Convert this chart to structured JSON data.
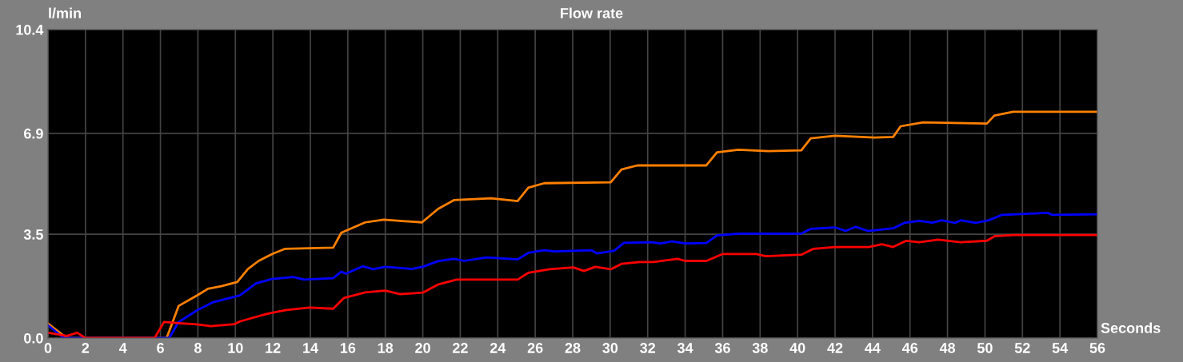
{
  "chart_data": {
    "type": "line",
    "title": "Flow rate",
    "ylabel": "l/min",
    "xlabel": "Seconds",
    "xlim": [
      0,
      56
    ],
    "xticks": [
      0,
      2,
      4,
      6,
      8,
      10,
      12,
      14,
      16,
      18,
      20,
      22,
      24,
      26,
      28,
      30,
      32,
      34,
      36,
      38,
      40,
      42,
      44,
      46,
      48,
      50,
      52,
      54,
      56
    ],
    "ylim": [
      0,
      10.4
    ],
    "yticks": [
      {
        "value": 0,
        "label": "0.0"
      },
      3.5,
      6.9,
      10.4
    ],
    "grid": true,
    "line_style": "solid",
    "marker": "none",
    "series": [
      {
        "color": "#ff8000",
        "x": [
          0,
          1.0,
          6.33,
          6.97,
          7.97,
          8.53,
          9.25,
          10.1,
          10.67,
          11.24,
          11.95,
          12.66,
          15.22,
          15.65,
          16.93,
          17.92,
          19.96,
          20.81,
          21.66,
          23.65,
          25.06,
          25.63,
          26.48,
          30.03,
          30.6,
          31.45,
          35.13,
          35.7,
          36.84,
          38.44,
          40.2,
          40.7,
          42.0,
          44.1,
          45.1,
          45.5,
          46.7,
          50.1,
          50.5,
          51.5,
          56.0
        ],
        "values": [
          0.49,
          0,
          0,
          1.08,
          1.44,
          1.66,
          1.75,
          1.89,
          2.33,
          2.6,
          2.83,
          3.01,
          3.05,
          3.55,
          3.9,
          3.99,
          3.9,
          4.35,
          4.65,
          4.71,
          4.62,
          5.07,
          5.22,
          5.25,
          5.68,
          5.82,
          5.82,
          6.26,
          6.35,
          6.3,
          6.33,
          6.73,
          6.82,
          6.76,
          6.78,
          7.14,
          7.27,
          7.23,
          7.5,
          7.63,
          7.63
        ]
      },
      {
        "color": "#0000ff",
        "x": [
          0,
          0.85,
          6.47,
          6.97,
          7.97,
          8.82,
          9.96,
          10.24,
          11.1,
          11.95,
          13.09,
          13.66,
          15.22,
          15.65,
          15.9,
          16.8,
          17.35,
          17.99,
          19.4,
          20.0,
          20.8,
          21.66,
          22.2,
          23.4,
          25.06,
          25.63,
          26.48,
          27.05,
          29.0,
          29.3,
          30.2,
          30.74,
          32.2,
          32.7,
          33.3,
          34.0,
          35.13,
          35.7,
          36.84,
          40.2,
          40.7,
          42.0,
          42.56,
          43.1,
          43.76,
          45.1,
          45.7,
          46.5,
          47.2,
          47.7,
          48.4,
          48.7,
          49.5,
          50.2,
          50.9,
          53.35,
          53.6,
          56.0
        ],
        "values": [
          0.43,
          0,
          0,
          0.54,
          0.94,
          1.21,
          1.39,
          1.44,
          1.84,
          1.99,
          2.06,
          1.97,
          2.02,
          2.24,
          2.17,
          2.42,
          2.32,
          2.4,
          2.33,
          2.4,
          2.59,
          2.67,
          2.6,
          2.72,
          2.65,
          2.87,
          2.96,
          2.92,
          2.96,
          2.85,
          2.94,
          3.21,
          3.23,
          3.19,
          3.26,
          3.19,
          3.2,
          3.46,
          3.52,
          3.52,
          3.68,
          3.73,
          3.61,
          3.75,
          3.61,
          3.7,
          3.88,
          3.95,
          3.89,
          3.97,
          3.88,
          3.97,
          3.88,
          3.97,
          4.15,
          4.22,
          4.15,
          4.17
        ]
      },
      {
        "color": "#ff0000",
        "x": [
          0,
          1.0,
          1.56,
          2.0,
          5.69,
          6.19,
          7.25,
          7.82,
          8.68,
          9.96,
          10.24,
          11.66,
          12.66,
          13.94,
          15.22,
          15.79,
          16.93,
          17.99,
          18.8,
          20.0,
          20.8,
          21.8,
          25.06,
          25.63,
          26.77,
          28.04,
          28.6,
          29.2,
          30.03,
          30.6,
          31.6,
          32.3,
          33.6,
          34.0,
          35.13,
          35.99,
          37.8,
          38.3,
          40.2,
          40.85,
          42.0,
          43.8,
          44.5,
          45.1,
          45.8,
          46.5,
          47.5,
          48.7,
          50.1,
          50.5,
          51.5,
          56.0
        ],
        "values": [
          0.18,
          0.07,
          0.18,
          0,
          0,
          0.54,
          0.49,
          0.47,
          0.4,
          0.47,
          0.56,
          0.81,
          0.94,
          1.03,
          0.99,
          1.35,
          1.54,
          1.6,
          1.48,
          1.53,
          1.8,
          1.97,
          1.97,
          2.2,
          2.32,
          2.38,
          2.26,
          2.4,
          2.32,
          2.5,
          2.56,
          2.56,
          2.67,
          2.6,
          2.6,
          2.83,
          2.83,
          2.76,
          2.81,
          3.01,
          3.07,
          3.07,
          3.16,
          3.07,
          3.28,
          3.23,
          3.32,
          3.23,
          3.28,
          3.43,
          3.47,
          3.47
        ]
      }
    ]
  }
}
